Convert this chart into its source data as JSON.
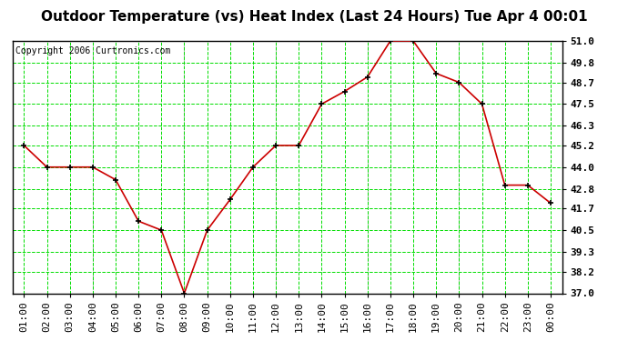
{
  "title": "Outdoor Temperature (vs) Heat Index (Last 24 Hours) Tue Apr 4 00:01",
  "copyright": "Copyright 2006 Curtronics.com",
  "x_labels": [
    "01:00",
    "02:00",
    "03:00",
    "04:00",
    "05:00",
    "06:00",
    "07:00",
    "08:00",
    "09:00",
    "10:00",
    "11:00",
    "12:00",
    "13:00",
    "14:00",
    "15:00",
    "16:00",
    "17:00",
    "18:00",
    "19:00",
    "20:00",
    "21:00",
    "22:00",
    "23:00",
    "00:00"
  ],
  "y_values": [
    45.2,
    44.0,
    44.0,
    44.0,
    43.3,
    41.0,
    40.5,
    37.0,
    40.5,
    42.2,
    44.0,
    45.2,
    45.2,
    47.5,
    48.2,
    49.0,
    51.0,
    51.0,
    49.2,
    48.7,
    47.5,
    43.0,
    43.0,
    42.0
  ],
  "ylim_min": 37.0,
  "ylim_max": 51.0,
  "yticks": [
    37.0,
    38.2,
    39.3,
    40.5,
    41.7,
    42.8,
    44.0,
    45.2,
    46.3,
    47.5,
    48.7,
    49.8,
    51.0
  ],
  "line_color": "#cc0000",
  "marker": "+",
  "marker_color": "#000000",
  "grid_color": "#00dd00",
  "grid_minor_color": "#cccccc",
  "bg_color": "#ffffff",
  "plot_bg_color": "#ffffff",
  "title_fontsize": 11,
  "copyright_fontsize": 7,
  "tick_fontsize": 8,
  "title_color": "#000000",
  "axis_color": "#000000",
  "dashed_vline_color": "#aaaaaa",
  "dashed_vline_positions": [
    3,
    7,
    11,
    15,
    19
  ]
}
